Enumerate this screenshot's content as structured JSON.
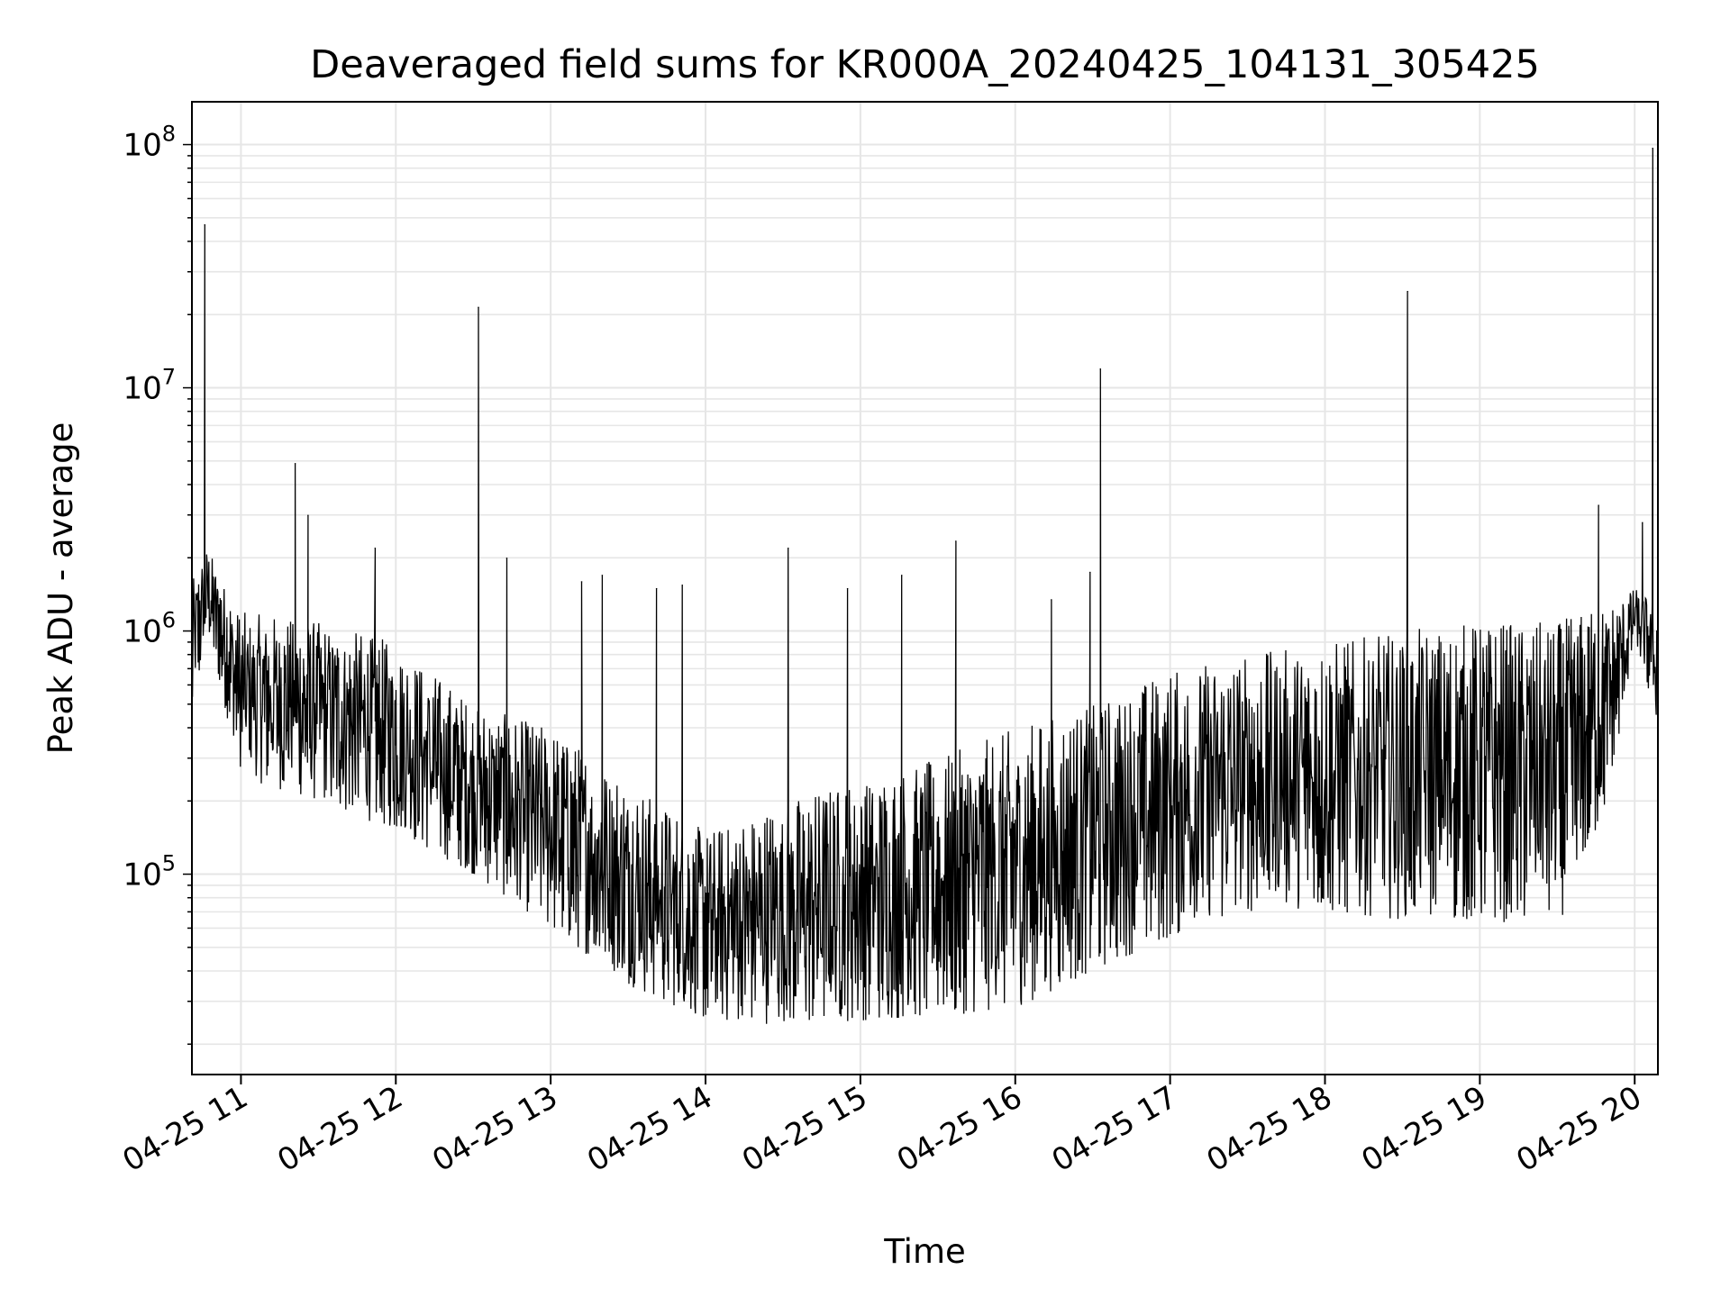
{
  "chart_data": {
    "type": "line",
    "title": "Deaveraged field sums for KR000A_20240425_104131_305425",
    "xlabel": "Time",
    "ylabel": "Peak ADU - average",
    "yscale": "log",
    "ylim": [
      15000,
      150000000
    ],
    "xlim": [
      "04-25 10:41",
      "04-25 20:09"
    ],
    "grid": true,
    "colors": {
      "line": "#000000",
      "grid": "#e6e6e6",
      "axes": "#000000"
    },
    "x_ticks": [
      {
        "value": "04-25 11:00",
        "label": "04-25 11"
      },
      {
        "value": "04-25 12:00",
        "label": "04-25 12"
      },
      {
        "value": "04-25 13:00",
        "label": "04-25 13"
      },
      {
        "value": "04-25 14:00",
        "label": "04-25 14"
      },
      {
        "value": "04-25 15:00",
        "label": "04-25 15"
      },
      {
        "value": "04-25 16:00",
        "label": "04-25 16"
      },
      {
        "value": "04-25 17:00",
        "label": "04-25 17"
      },
      {
        "value": "04-25 18:00",
        "label": "04-25 18"
      },
      {
        "value": "04-25 19:00",
        "label": "04-25 19"
      },
      {
        "value": "04-25 20:00",
        "label": "04-25 20"
      }
    ],
    "y_ticks": [
      {
        "value": 100000,
        "base": "10",
        "exp": "5"
      },
      {
        "value": 1000000,
        "base": "10",
        "exp": "6"
      },
      {
        "value": 10000000,
        "base": "10",
        "exp": "7"
      },
      {
        "value": 100000000,
        "base": "10",
        "exp": "8"
      }
    ],
    "series": [
      {
        "baseline": {
          "x": [
            "04-25 10:41",
            "04-25 10:47",
            "04-25 11:00",
            "04-25 11:30",
            "04-25 12:00",
            "04-25 12:30",
            "04-25 13:00",
            "04-25 13:30",
            "04-25 14:00",
            "04-25 14:30",
            "04-25 15:00",
            "04-25 15:30",
            "04-25 16:00",
            "04-25 16:30",
            "04-25 17:00",
            "04-25 17:30",
            "04-25 18:00",
            "04-25 18:30",
            "04-25 19:00",
            "04-25 19:30",
            "04-25 19:50",
            "04-25 20:00",
            "04-25 20:09"
          ],
          "low": [
            400000,
            1000000,
            250000,
            200000,
            150000,
            100000,
            60000,
            35000,
            25000,
            24000,
            25000,
            26000,
            28000,
            40000,
            55000,
            70000,
            70000,
            65000,
            65000,
            60000,
            200000,
            900000,
            400000
          ],
          "high": [
            1600000,
            2200000,
            1200000,
            1100000,
            900000,
            500000,
            400000,
            250000,
            150000,
            200000,
            250000,
            300000,
            400000,
            500000,
            700000,
            800000,
            900000,
            1000000,
            1100000,
            1100000,
            1300000,
            1500000,
            1300000
          ]
        },
        "spikes": [
          {
            "x": "04-25 10:46",
            "y": 47000000
          },
          {
            "x": "04-25 11:21",
            "y": 4900000
          },
          {
            "x": "04-25 11:26",
            "y": 3000000
          },
          {
            "x": "04-25 11:52",
            "y": 2200000
          },
          {
            "x": "04-25 12:32",
            "y": 21500000
          },
          {
            "x": "04-25 12:43",
            "y": 2000000
          },
          {
            "x": "04-25 13:12",
            "y": 1600000
          },
          {
            "x": "04-25 13:20",
            "y": 1700000
          },
          {
            "x": "04-25 13:41",
            "y": 1500000
          },
          {
            "x": "04-25 13:51",
            "y": 1550000
          },
          {
            "x": "04-25 14:32",
            "y": 2200000
          },
          {
            "x": "04-25 14:55",
            "y": 1500000
          },
          {
            "x": "04-25 15:16",
            "y": 1700000
          },
          {
            "x": "04-25 15:37",
            "y": 2350000
          },
          {
            "x": "04-25 16:14",
            "y": 1350000
          },
          {
            "x": "04-25 16:29",
            "y": 1750000
          },
          {
            "x": "04-25 16:33",
            "y": 12000000
          },
          {
            "x": "04-25 18:32",
            "y": 25000000
          },
          {
            "x": "04-25 19:46",
            "y": 3300000
          },
          {
            "x": "04-25 20:03",
            "y": 2800000
          },
          {
            "x": "04-25 20:07",
            "y": 97000000
          }
        ]
      }
    ]
  }
}
